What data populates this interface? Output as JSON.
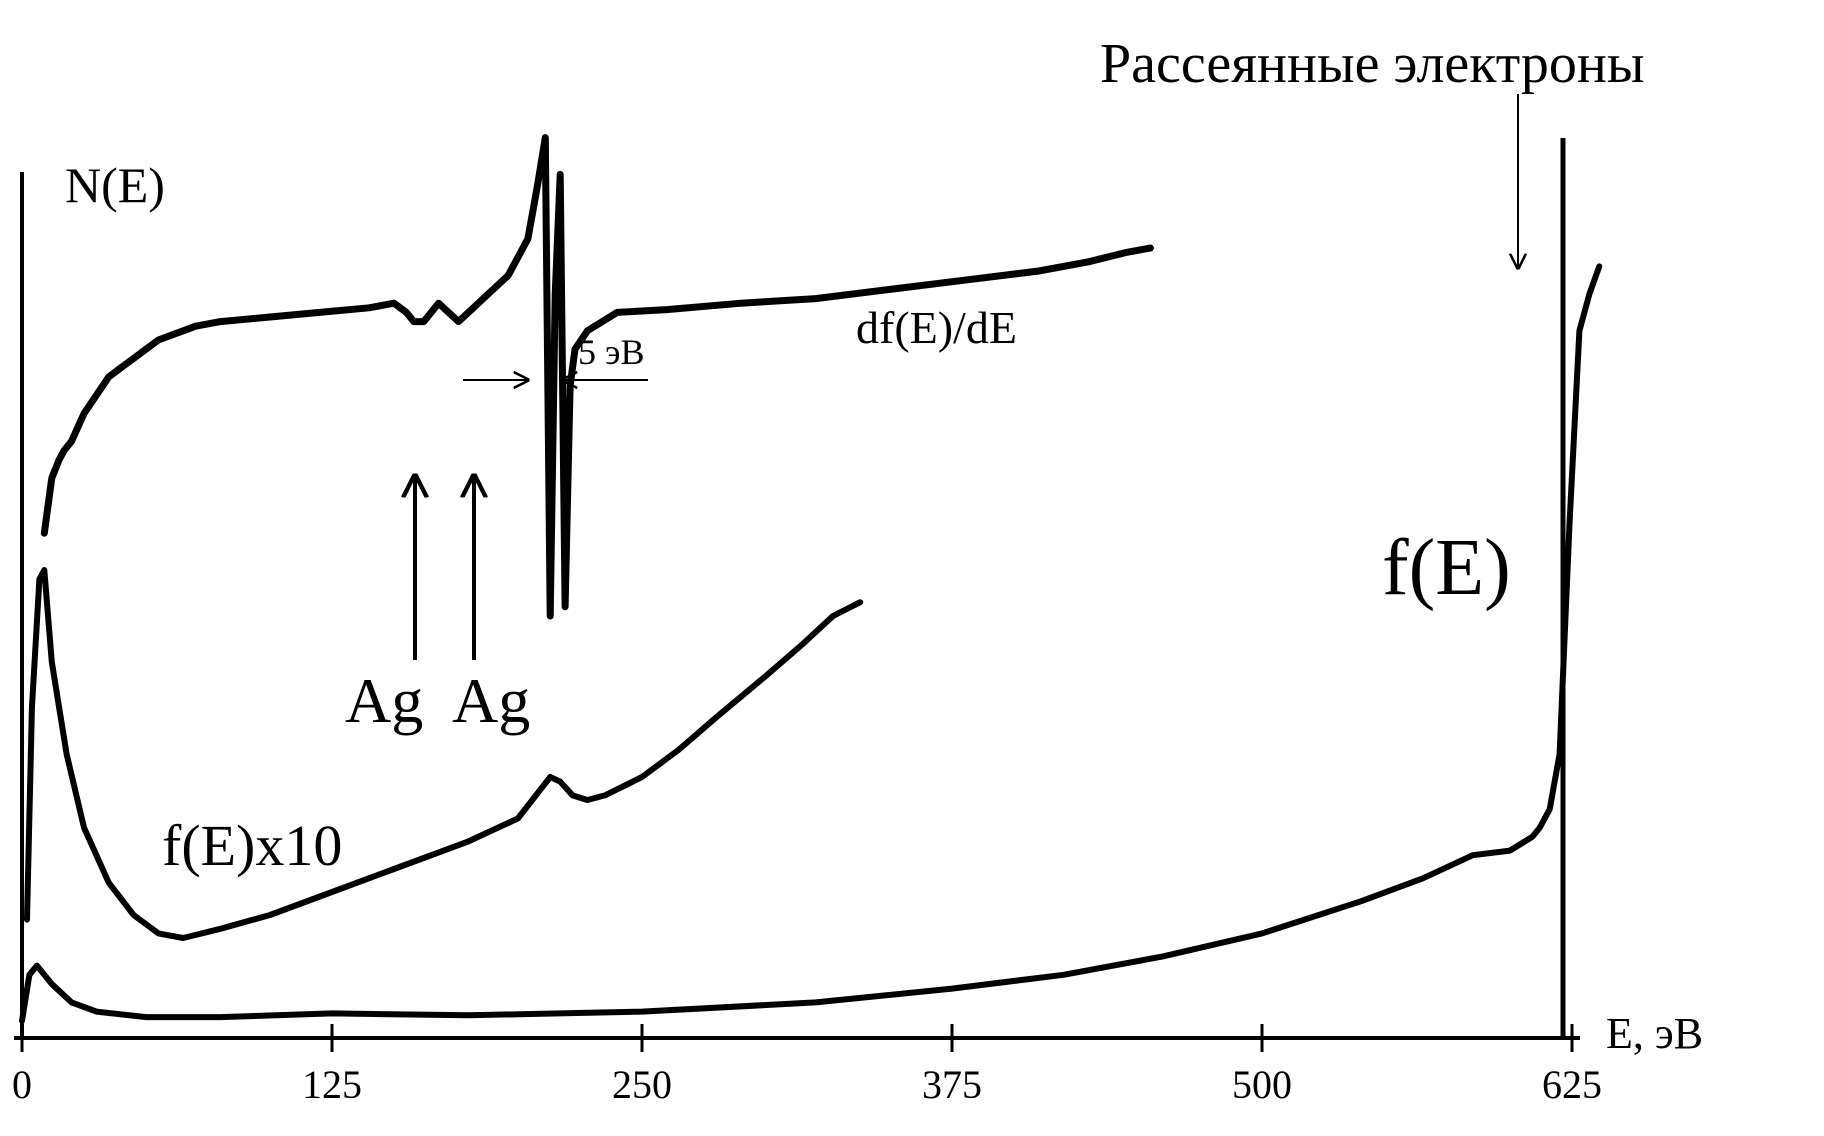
{
  "chart_data": {
    "type": "line",
    "xlabel": "E, эВ",
    "ylabel": "N(E)",
    "xlim": [
      0,
      640
    ],
    "ylim": [
      0,
      100
    ],
    "ticks": [
      "0",
      "125",
      "250",
      "375",
      "500",
      "625"
    ],
    "tick_values": [
      0,
      125,
      250,
      375,
      500,
      625
    ],
    "grid": false,
    "series": [
      {
        "name": "f(E)",
        "x": [
          0,
          3,
          6,
          12,
          20,
          30,
          50,
          80,
          125,
          180,
          250,
          320,
          375,
          420,
          460,
          500,
          540,
          565,
          585,
          600,
          609,
          612,
          616,
          620,
          624,
          628,
          632,
          636
        ],
        "y": [
          1,
          6,
          7,
          5,
          3,
          2,
          1.4,
          1.4,
          1.8,
          1.6,
          2,
          3,
          4.5,
          6,
          8,
          10.5,
          14,
          16.5,
          19,
          19.5,
          21,
          22,
          24,
          30,
          55,
          76,
          80,
          83
        ]
      },
      {
        "name": "f(E)x10",
        "x": [
          2,
          4,
          7,
          9,
          12,
          18,
          25,
          35,
          45,
          55,
          65,
          80,
          100,
          125,
          150,
          180,
          200,
          213,
          217,
          222,
          228,
          235,
          250,
          265,
          280,
          300,
          315,
          327,
          338
        ],
        "y": [
          12,
          35,
          49,
          50,
          40,
          30,
          22,
          16,
          12.5,
          10.5,
          10,
          11,
          12.5,
          15,
          17.5,
          20.5,
          23,
          27.5,
          27,
          25.5,
          25,
          25.5,
          27.5,
          30.5,
          34,
          38.5,
          42,
          45,
          46.5
        ]
      },
      {
        "name": "df(E)/dE",
        "x": [
          9,
          12,
          15,
          17,
          20,
          25,
          30,
          35,
          40,
          45,
          50,
          55,
          60,
          65,
          70,
          80,
          100,
          120,
          140,
          150,
          155,
          158,
          162,
          168,
          172,
          176,
          182,
          188,
          196,
          204,
          208,
          211,
          213,
          215,
          217,
          219,
          221,
          223,
          228,
          240,
          260,
          290,
          320,
          350,
          380,
          410,
          430,
          445,
          455
        ],
        "y": [
          54,
          60,
          62,
          63,
          64,
          67,
          69,
          71,
          72,
          73,
          74,
          75,
          75.5,
          76,
          76.5,
          77,
          77.5,
          78,
          78.5,
          79,
          78,
          77,
          77,
          79,
          78,
          77,
          78.5,
          80,
          82,
          86,
          92,
          97,
          45,
          80,
          93,
          46,
          70,
          74,
          76,
          78,
          78.3,
          79,
          79.5,
          80.5,
          81.5,
          82.5,
          83.5,
          84.5,
          85
        ]
      }
    ],
    "annotations": [
      "Рассеянные электроны",
      "f(E)",
      "f(E)x10",
      "df(E)/dE",
      "5 эВ",
      "Ag",
      "Ag"
    ]
  }
}
